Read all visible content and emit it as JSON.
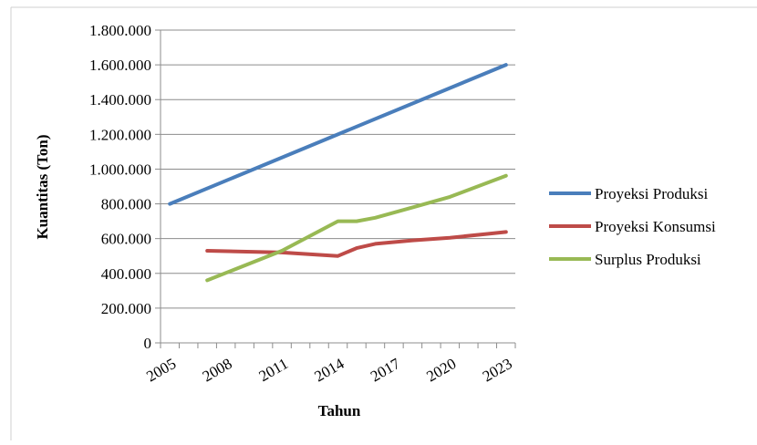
{
  "chart_data": {
    "type": "line",
    "title": "",
    "xlabel": "Tahun",
    "ylabel": "Kuantitas (Ton)",
    "ylim": [
      0,
      1800000
    ],
    "y_ticks": [
      "0",
      "200.000",
      "400.000",
      "600.000",
      "800.000",
      "1.000.000",
      "1.200.000",
      "1.400.000",
      "1.600.000",
      "1.800.000"
    ],
    "x_tick_labels": [
      "2005",
      "2008",
      "2011",
      "2014",
      "2017",
      "2020",
      "2023"
    ],
    "x_labeled_years": [
      2005,
      2008,
      2011,
      2014,
      2017,
      2020,
      2023
    ],
    "legend_position": "right",
    "grid": "horizontal",
    "series": [
      {
        "name": "Proyeksi Produksi",
        "color": "#4a7ebb",
        "x": [
          2005,
          2023
        ],
        "values": [
          800000,
          1600000
        ]
      },
      {
        "name": "Proyeksi Konsumsi",
        "color": "#be4b48",
        "x": [
          2007,
          2011,
          2014,
          2015,
          2016,
          2018,
          2020,
          2023
        ],
        "values": [
          530000,
          520000,
          500000,
          545000,
          570000,
          590000,
          605000,
          638000
        ]
      },
      {
        "name": "Surplus Produksi",
        "color": "#98b954",
        "x": [
          2007,
          2011,
          2014,
          2015,
          2016,
          2018,
          2020,
          2023
        ],
        "values": [
          360000,
          530000,
          700000,
          700000,
          720000,
          780000,
          840000,
          962000
        ]
      }
    ]
  }
}
